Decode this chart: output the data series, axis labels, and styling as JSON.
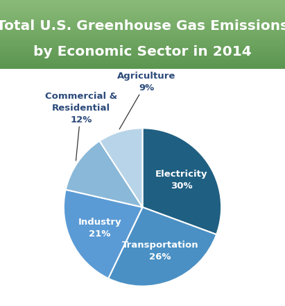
{
  "title_line1": "Total U.S. Greenhouse Gas Emissions",
  "title_line2": "by Economic Sector in 2014",
  "title_color": "#ffffff",
  "title_fontsize": 14.5,
  "title_fontweight": "bold",
  "header_grad_top": "#8aba78",
  "header_grad_bottom": "#5a9550",
  "body_bg_color": "#ffffff",
  "slices": [
    {
      "label": "Electricity",
      "value": 30,
      "color": "#1f5f82",
      "inside": true
    },
    {
      "label": "Transportation",
      "value": 26,
      "color": "#4a90c4",
      "inside": true
    },
    {
      "label": "Industry",
      "value": 21,
      "color": "#5b9bd5",
      "inside": true
    },
    {
      "label": "Commercial &\nResidential",
      "value": 12,
      "color": "#8ab8d8",
      "inside": false
    },
    {
      "label": "Agriculture",
      "value": 9,
      "color": "#b8d4e8",
      "inside": false
    }
  ],
  "startangle": 90,
  "wedge_edge_color": "#ffffff",
  "wedge_edge_width": 1.5,
  "label_fontsize": 9.5,
  "label_fontweight": "bold",
  "inside_label_color": "#ffffff",
  "outside_label_color": "#2c4a7a",
  "arrow_color": "#333333"
}
